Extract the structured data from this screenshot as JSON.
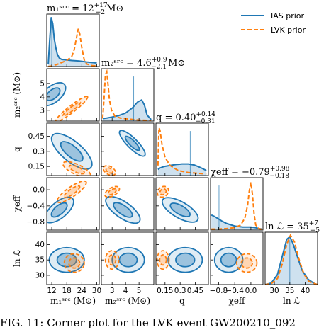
{
  "chart_data": {
    "type": "corner",
    "parameters": [
      {
        "key": "m1",
        "axis_label": "m₁ˢʳᶜ (M⊙)",
        "title_main": "m₁ˢʳᶜ = 12",
        "title_plus": "+17",
        "title_minus": "−2",
        "title_unit": "M⊙",
        "median": 12,
        "err_plus": 17,
        "err_minus": 2,
        "range": [
          10,
          31
        ],
        "ticks": [
          12,
          18,
          24,
          30
        ]
      },
      {
        "key": "m2",
        "axis_label": "m₂ˢʳᶜ (M⊙)",
        "title_main": "m₂ˢʳᶜ = 4.6",
        "title_plus": "+0.9",
        "title_minus": "−2.1",
        "title_unit": "M⊙",
        "median": 4.6,
        "err_plus": 0.9,
        "err_minus": 2.1,
        "range": [
          2.2,
          6.1
        ],
        "ticks": [
          3,
          4,
          5
        ]
      },
      {
        "key": "q",
        "axis_label": "q",
        "title_main": "q = 0.40",
        "title_plus": "+0.14",
        "title_minus": "−0.31",
        "title_unit": "",
        "median": 0.4,
        "err_plus": 0.14,
        "err_minus": 0.31,
        "range": [
          0.06,
          0.58
        ],
        "ticks": [
          0.15,
          0.3,
          0.45
        ]
      },
      {
        "key": "chi",
        "axis_label": "χeff",
        "title_main": "χeff = −0.79",
        "title_plus": "+0.98",
        "title_minus": "−0.18",
        "title_unit": "",
        "median": -0.79,
        "err_plus": 0.98,
        "err_minus": 0.18,
        "range": [
          -1.0,
          0.3
        ],
        "ticks": [
          -0.8,
          -0.4,
          0.0
        ]
      },
      {
        "key": "lnL",
        "axis_label": "ln ℒ",
        "title_main": "ln ℒ = 35",
        "title_plus": "+7",
        "title_minus": "−5",
        "title_unit": "",
        "median": 35,
        "err_plus": 7,
        "err_minus": 5,
        "range": [
          27,
          44
        ],
        "ticks": [
          30,
          35,
          40
        ]
      }
    ],
    "legend": [
      {
        "label": "IAS prior",
        "color": "#1f77b4",
        "style": "solid"
      },
      {
        "label": "LVK prior",
        "color": "#ff7f0e",
        "style": "dashed"
      }
    ],
    "legend_position": "top-right",
    "marginals": {
      "m1": {
        "ias_x": [
          10.6,
          11.2,
          11.8,
          12.4,
          13.0,
          13.6,
          14.2,
          15.0,
          16,
          18,
          20,
          23,
          26,
          30
        ],
        "ias_y": [
          0.05,
          0.55,
          0.98,
          0.85,
          0.55,
          0.38,
          0.25,
          0.17,
          0.14,
          0.13,
          0.12,
          0.11,
          0.09,
          0.07
        ],
        "lvk_x": [
          10.6,
          12,
          14,
          16,
          18,
          20,
          21,
          22,
          22.6,
          23.2,
          24,
          25,
          26,
          28,
          30
        ],
        "lvk_y": [
          0.0,
          0.01,
          0.04,
          0.08,
          0.12,
          0.2,
          0.34,
          0.6,
          0.75,
          0.65,
          0.38,
          0.13,
          0.05,
          0.02,
          0.01
        ]
      },
      "m2": {
        "ias_x": [
          2.3,
          2.6,
          3.0,
          3.5,
          4.0,
          4.5,
          4.9,
          5.2,
          5.4,
          5.6,
          5.9
        ],
        "ias_y": [
          0.05,
          0.06,
          0.08,
          0.11,
          0.16,
          0.26,
          0.38,
          0.42,
          0.32,
          0.12,
          0.03
        ],
        "lvk_x": [
          2.3,
          2.4,
          2.5,
          2.6,
          2.7,
          2.8,
          2.95,
          3.2,
          3.6,
          4.2,
          5,
          5.9
        ],
        "lvk_y": [
          0.05,
          0.45,
          0.92,
          0.98,
          0.72,
          0.42,
          0.22,
          0.1,
          0.06,
          0.04,
          0.02,
          0.01
        ]
      },
      "q": {
        "ias_x": [
          0.08,
          0.1,
          0.14,
          0.2,
          0.26,
          0.32,
          0.38,
          0.44,
          0.5,
          0.56
        ],
        "ias_y": [
          0.12,
          0.15,
          0.18,
          0.2,
          0.22,
          0.23,
          0.23,
          0.21,
          0.16,
          0.1
        ],
        "lvk_x": [
          0.08,
          0.09,
          0.1,
          0.12,
          0.15,
          0.2,
          0.28,
          0.38,
          0.5,
          0.56
        ],
        "lvk_y": [
          0.2,
          0.95,
          0.9,
          0.62,
          0.36,
          0.2,
          0.1,
          0.06,
          0.04,
          0.03
        ]
      },
      "chi": {
        "ias_x": [
          -0.98,
          -0.9,
          -0.8,
          -0.7,
          -0.6,
          -0.4,
          -0.2,
          0.0,
          0.1,
          0.2,
          0.28
        ],
        "ias_y": [
          0.3,
          0.27,
          0.22,
          0.17,
          0.13,
          0.08,
          0.06,
          0.06,
          0.05,
          0.03,
          0.02
        ],
        "lvk_x": [
          -0.98,
          -0.8,
          -0.6,
          -0.4,
          -0.25,
          -0.15,
          -0.08,
          -0.04,
          0.0,
          0.04,
          0.08,
          0.12,
          0.2,
          0.28
        ],
        "lvk_y": [
          0.02,
          0.02,
          0.03,
          0.05,
          0.1,
          0.24,
          0.5,
          0.78,
          0.95,
          0.7,
          0.32,
          0.1,
          0.03,
          0.01
        ]
      },
      "lnL": {
        "ias_x": [
          27,
          29,
          31,
          32.5,
          34,
          35,
          36,
          37.5,
          39,
          41,
          43,
          44
        ],
        "ias_y": [
          0.0,
          0.03,
          0.2,
          0.55,
          0.9,
          0.95,
          0.82,
          0.55,
          0.28,
          0.1,
          0.02,
          0.0
        ],
        "lvk_x": [
          27,
          29,
          31,
          32.5,
          34,
          35.2,
          36.5,
          38,
          39.5,
          41,
          43,
          44
        ],
        "lvk_y": [
          0.0,
          0.02,
          0.12,
          0.4,
          0.8,
          0.98,
          0.85,
          0.5,
          0.22,
          0.07,
          0.02,
          0.0
        ]
      }
    },
    "contours": [
      {
        "x": "m1",
        "y": "m2",
        "ias": {
          "cx": 12.5,
          "cy": 4.2,
          "rx": 6,
          "ry": 0.6,
          "angle": -40
        },
        "lvk": {
          "cx": 20,
          "cy": 3.1,
          "rx": 8,
          "ry": 0.25,
          "angle": -38
        }
      },
      {
        "x": "m1",
        "y": "q",
        "ias": {
          "cx": 20,
          "cy": 0.3,
          "rx": 10,
          "ry": 0.1,
          "angle": 40
        },
        "lvk": {
          "cx": 22,
          "cy": 0.12,
          "rx": 6,
          "ry": 0.05,
          "angle": 25
        }
      },
      {
        "x": "m2",
        "y": "q",
        "ias": {
          "cx": 4.5,
          "cy": 0.38,
          "rx": 1.3,
          "ry": 0.05,
          "angle": 45
        },
        "lvk": {
          "cx": 2.8,
          "cy": 0.11,
          "rx": 0.5,
          "ry": 0.04,
          "angle": 30
        }
      },
      {
        "x": "m1",
        "y": "chi",
        "ias": {
          "cx": 15,
          "cy": -0.5,
          "rx": 7,
          "ry": 0.2,
          "angle": -40
        },
        "lvk": {
          "cx": 20,
          "cy": -0.05,
          "rx": 7,
          "ry": 0.12,
          "angle": -35
        }
      },
      {
        "x": "m2",
        "y": "chi",
        "ias": {
          "cx": 3.8,
          "cy": -0.5,
          "rx": 1.5,
          "ry": 0.2,
          "angle": 35
        },
        "lvk": {
          "cx": 3.0,
          "cy": -0.05,
          "rx": 0.6,
          "ry": 0.1,
          "angle": -30
        }
      },
      {
        "x": "q",
        "y": "chi",
        "ias": {
          "cx": 0.3,
          "cy": -0.5,
          "rx": 0.2,
          "ry": 0.2,
          "angle": 30
        },
        "lvk": {
          "cx": 0.13,
          "cy": -0.05,
          "rx": 0.06,
          "ry": 0.12,
          "angle": -40
        }
      },
      {
        "x": "m1",
        "y": "lnL",
        "ias": {
          "cx": 18,
          "cy": 35,
          "rx": 7,
          "ry": 4,
          "angle": 0
        },
        "lvk": {
          "cx": 21,
          "cy": 34,
          "rx": 4,
          "ry": 3,
          "angle": 10
        }
      },
      {
        "x": "m2",
        "y": "lnL",
        "ias": {
          "cx": 4.2,
          "cy": 35,
          "rx": 1.2,
          "ry": 4,
          "angle": 0
        },
        "lvk": {
          "cx": 3.0,
          "cy": 35,
          "rx": 0.5,
          "ry": 3,
          "angle": 0
        }
      },
      {
        "x": "q",
        "y": "lnL",
        "ias": {
          "cx": 0.35,
          "cy": 35,
          "rx": 0.17,
          "ry": 4,
          "angle": 0
        },
        "lvk": {
          "cx": 0.13,
          "cy": 35,
          "rx": 0.06,
          "ry": 3,
          "angle": 0
        }
      },
      {
        "x": "chi",
        "y": "lnL",
        "ias": {
          "cx": -0.55,
          "cy": 35,
          "rx": 0.35,
          "ry": 4,
          "angle": 0
        },
        "lvk": {
          "cx": -0.1,
          "cy": 34,
          "rx": 0.25,
          "ry": 3,
          "angle": 0
        }
      }
    ]
  },
  "caption": "FIG. 11: Corner plot for the LVK event GW200210_092"
}
